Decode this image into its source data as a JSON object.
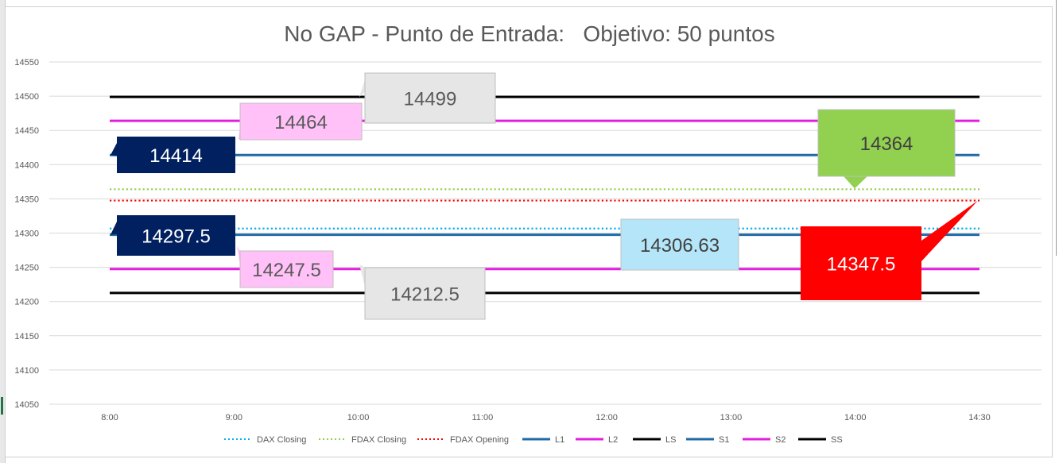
{
  "chart_data": {
    "type": "line",
    "title": "No GAP - Punto de Entrada:   Objetivo: 50 puntos",
    "x": [
      "8:00",
      "9:00",
      "10:00",
      "11:00",
      "12:00",
      "13:00",
      "14:00",
      "14:30"
    ],
    "ylim": [
      14050,
      14550
    ],
    "yticks": [
      14550,
      14500,
      14450,
      14400,
      14350,
      14300,
      14250,
      14200,
      14150,
      14100,
      14050
    ],
    "grid": true,
    "legend_position": "bottom",
    "series": [
      {
        "name": "DAX Closing",
        "value": 14306.63,
        "color": "#00b0f0",
        "style": "dotted"
      },
      {
        "name": "FDAX Closing",
        "value": 14364,
        "color": "#92d050",
        "style": "dotted"
      },
      {
        "name": "FDAX Opening",
        "value": 14347.5,
        "color": "#ff0000",
        "style": "dotted"
      },
      {
        "name": "L1",
        "value": 14414,
        "color": "#1f6aa5",
        "style": "solid"
      },
      {
        "name": "L2",
        "value": 14464,
        "color": "#e11ee1",
        "style": "solid"
      },
      {
        "name": "LS",
        "value": 14499,
        "color": "#000000",
        "style": "solid"
      },
      {
        "name": "S1",
        "value": 14297.5,
        "color": "#1f6aa5",
        "style": "solid"
      },
      {
        "name": "S2",
        "value": 14247.5,
        "color": "#e11ee1",
        "style": "solid"
      },
      {
        "name": "SS",
        "value": 14212.5,
        "color": "#000000",
        "style": "solid"
      }
    ],
    "annotations": [
      {
        "text": "14499",
        "series": "LS",
        "bg": "#e7e6e6",
        "fg": "#595959"
      },
      {
        "text": "14464",
        "series": "L2",
        "bg": "#ffc1f7",
        "fg": "#595959"
      },
      {
        "text": "14414",
        "series": "L1",
        "bg": "#002060",
        "fg": "#ffffff"
      },
      {
        "text": "14364",
        "series": "FDAX Closing",
        "bg": "#92d050",
        "fg": "#404040"
      },
      {
        "text": "14297.5",
        "series": "S1",
        "bg": "#002060",
        "fg": "#ffffff"
      },
      {
        "text": "14306.63",
        "series": "DAX Closing",
        "bg": "#b4e5f8",
        "fg": "#404040"
      },
      {
        "text": "14347.5",
        "series": "FDAX Opening",
        "bg": "#ff0000",
        "fg": "#ffffff"
      },
      {
        "text": "14247.5",
        "series": "S2",
        "bg": "#ffc1f7",
        "fg": "#595959"
      },
      {
        "text": "14212.5",
        "series": "SS",
        "bg": "#e7e6e6",
        "fg": "#595959"
      }
    ]
  }
}
